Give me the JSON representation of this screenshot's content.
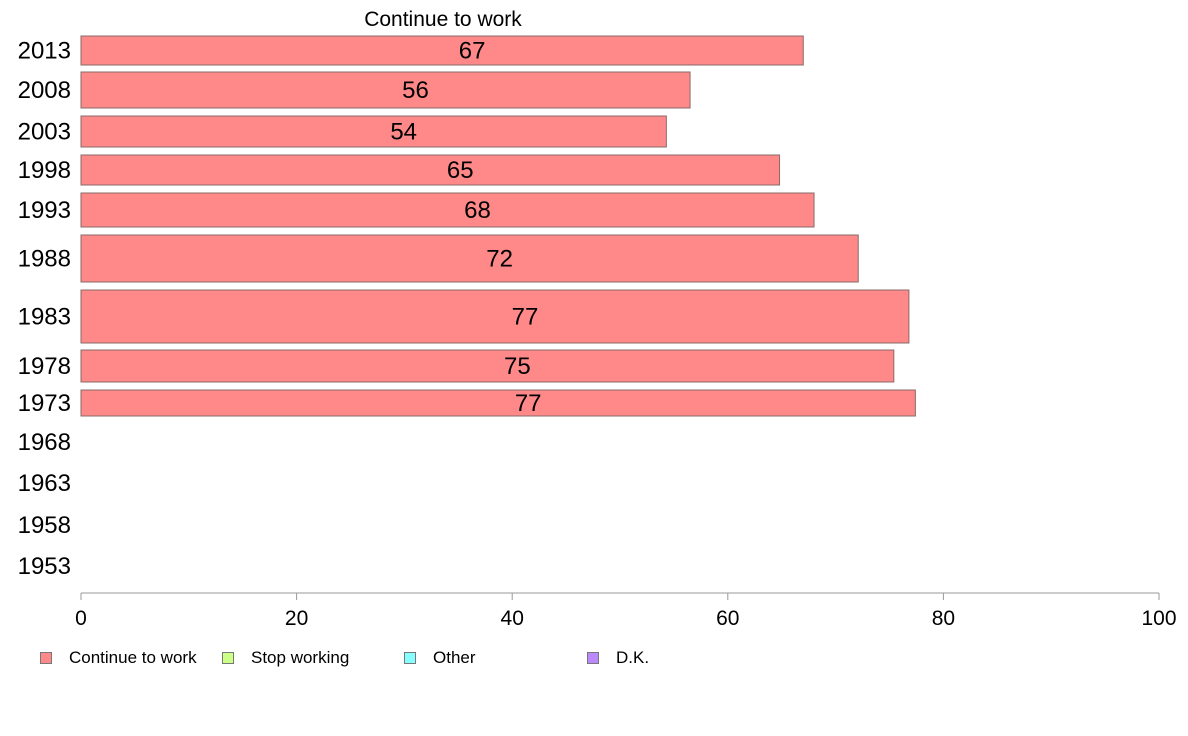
{
  "chart_data": {
    "type": "bar",
    "orientation": "horizontal",
    "title": "Continue to work",
    "categories": [
      "2013",
      "2008",
      "2003",
      "1998",
      "1993",
      "1988",
      "1983",
      "1978",
      "1973",
      "1968",
      "1963",
      "1958",
      "1953"
    ],
    "series": [
      {
        "name": "Continue to work",
        "color": "#ff8888",
        "values": [
          67,
          56.5,
          54.3,
          64.8,
          68,
          72.1,
          76.8,
          75.4,
          77.4,
          null,
          null,
          null,
          null
        ],
        "labels": [
          "67",
          "56",
          "54",
          "65",
          "68",
          "72",
          "77",
          "75",
          "77",
          "",
          "",
          "",
          ""
        ]
      }
    ],
    "xlim": [
      0,
      100
    ],
    "xticks": [
      "0",
      "20",
      "40",
      "60",
      "80",
      "100"
    ],
    "grid": false,
    "legend": {
      "position": "bottom",
      "items": [
        {
          "label": "Continue to work",
          "color": "#ff8888"
        },
        {
          "label": "Stop working",
          "color": "#ccff88"
        },
        {
          "label": "Other",
          "color": "#88ffff"
        },
        {
          "label": "D.K.",
          "color": "#bb88ff"
        }
      ]
    }
  }
}
